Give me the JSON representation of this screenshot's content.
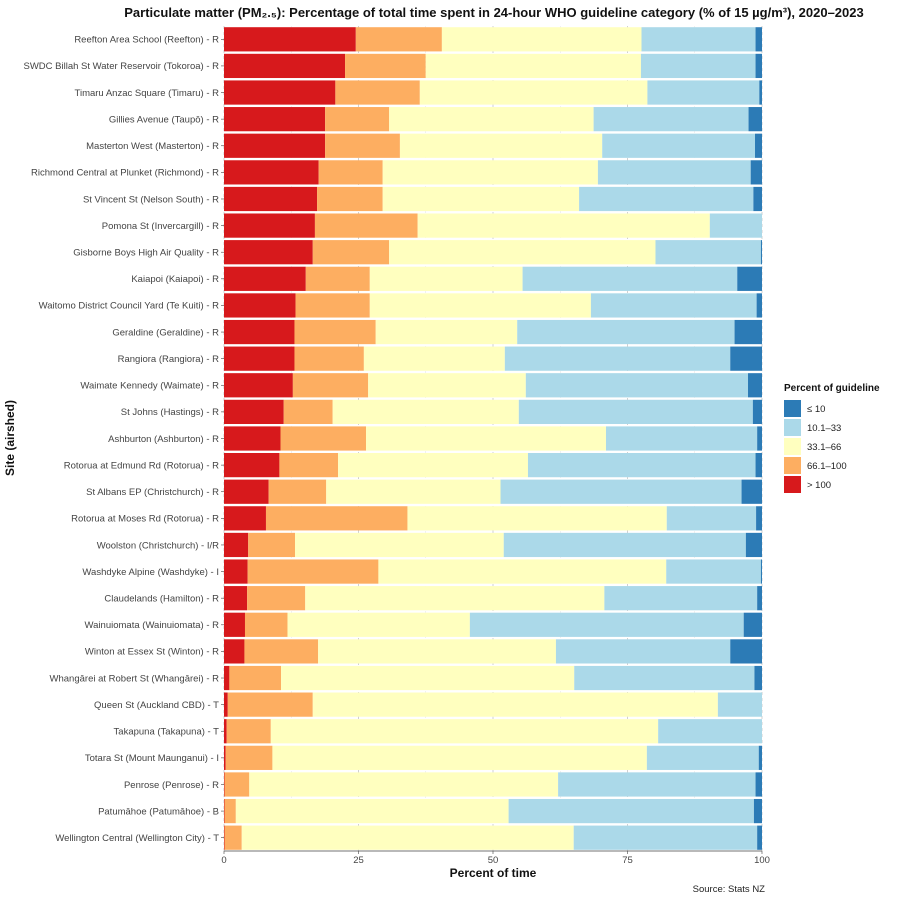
{
  "chart_data": {
    "type": "bar",
    "orientation": "horizontal",
    "stacked": true,
    "title": "Particulate matter (PM₂.₅): Percentage of total time spent in 24-hour WHO guideline category (% of 15 µg/m³), 2020–2023",
    "xlabel": "Percent of time",
    "ylabel": "Site (airshed)",
    "xlim": [
      0,
      100
    ],
    "xticks": [
      0,
      25,
      50,
      75,
      100
    ],
    "grid": true,
    "legend_title": "Percent of guideline",
    "legend_position": "right",
    "source": "Source: Stats NZ",
    "categories": [
      "Reefton Area School (Reefton) - R",
      "SWDC Billah St Water Reservoir (Tokoroa) - R",
      "Timaru Anzac Square (Timaru) - R",
      "Gillies Avenue (Taupō) - R",
      "Masterton West (Masterton) - R",
      "Richmond Central at Plunket (Richmond) - R",
      "St Vincent St (Nelson South) - R",
      "Pomona St (Invercargill) - R",
      "Gisborne Boys High Air Quality - R",
      "Kaiapoi (Kaiapoi) - R",
      "Waitomo District Council Yard (Te Kuiti) - R",
      "Geraldine (Geraldine) - R",
      "Rangiora (Rangiora) - R",
      "Waimate Kennedy (Waimate) - R",
      "St Johns (Hastings) - R",
      "Ashburton (Ashburton) - R",
      "Rotorua at Edmund Rd (Rotorua) - R",
      "St Albans EP (Christchurch) - R",
      "Rotorua at Moses Rd (Rotorua) - R",
      "Woolston (Christchurch) - I/R",
      "Washdyke Alpine (Washdyke) - I",
      "Claudelands (Hamilton) - R",
      "Wainuiomata (Wainuiomata) - R",
      "Winton at Essex St (Winton) - R",
      "Whangārei at Robert St (Whangārei) - R",
      "Queen St (Auckland CBD) - T",
      "Takapuna (Takapuna) - T",
      "Totara St (Mount Maunganui) - I",
      "Penrose (Penrose) - R",
      "Patumāhoe (Patumāhoe) - B",
      "Wellington Central (Wellington City) - T"
    ],
    "series": [
      {
        "name": "> 100",
        "color": "#d7191c",
        "values": [
          24.5,
          22.5,
          20.7,
          18.8,
          18.8,
          17.6,
          17.3,
          16.9,
          16.5,
          15.2,
          13.3,
          13.1,
          13.1,
          12.8,
          11.1,
          10.5,
          10.3,
          8.3,
          7.8,
          4.5,
          4.4,
          4.3,
          3.9,
          3.8,
          1.0,
          0.7,
          0.5,
          0.3,
          0.1,
          0.1,
          0.1
        ]
      },
      {
        "name": "66.1–100",
        "color": "#fdae61",
        "values": [
          16.0,
          15.0,
          15.7,
          11.9,
          13.9,
          11.9,
          12.2,
          19.1,
          14.2,
          11.9,
          13.8,
          15.1,
          12.9,
          14.0,
          9.1,
          15.9,
          10.9,
          10.7,
          26.3,
          8.7,
          24.3,
          10.8,
          7.9,
          13.7,
          9.6,
          15.8,
          8.2,
          8.7,
          4.6,
          2.1,
          3.2
        ]
      },
      {
        "name": "33.1–66",
        "color": "#ffffbf",
        "values": [
          37.1,
          40.0,
          42.3,
          38.0,
          37.6,
          40.0,
          36.5,
          54.3,
          49.5,
          28.4,
          41.1,
          26.3,
          26.2,
          29.3,
          34.6,
          44.6,
          35.3,
          32.4,
          48.2,
          38.8,
          53.5,
          55.6,
          33.9,
          44.2,
          54.5,
          75.3,
          72.0,
          69.6,
          57.4,
          50.7,
          61.7
        ]
      },
      {
        "name": "10.1–33",
        "color": "#abd9e9",
        "values": [
          21.2,
          21.3,
          20.8,
          28.8,
          28.4,
          28.4,
          32.4,
          9.7,
          19.6,
          39.9,
          30.8,
          40.4,
          41.9,
          41.3,
          43.5,
          28.1,
          42.3,
          44.8,
          16.6,
          45.0,
          17.6,
          28.4,
          50.9,
          32.4,
          33.5,
          8.2,
          19.3,
          20.8,
          36.7,
          45.6,
          34.1
        ]
      },
      {
        "name": "≤ 10",
        "color": "#2c7bb6",
        "values": [
          1.2,
          1.2,
          0.5,
          2.5,
          1.3,
          2.1,
          1.6,
          0.0,
          0.2,
          4.6,
          1.0,
          5.1,
          5.9,
          2.6,
          1.7,
          0.9,
          1.2,
          3.8,
          1.1,
          3.0,
          0.2,
          0.9,
          3.4,
          5.9,
          1.4,
          0.0,
          0.0,
          0.6,
          1.2,
          1.5,
          0.9
        ]
      }
    ],
    "legend_order": [
      "≤ 10",
      "10.1–33",
      "33.1–66",
      "66.1–100",
      "> 100"
    ]
  }
}
